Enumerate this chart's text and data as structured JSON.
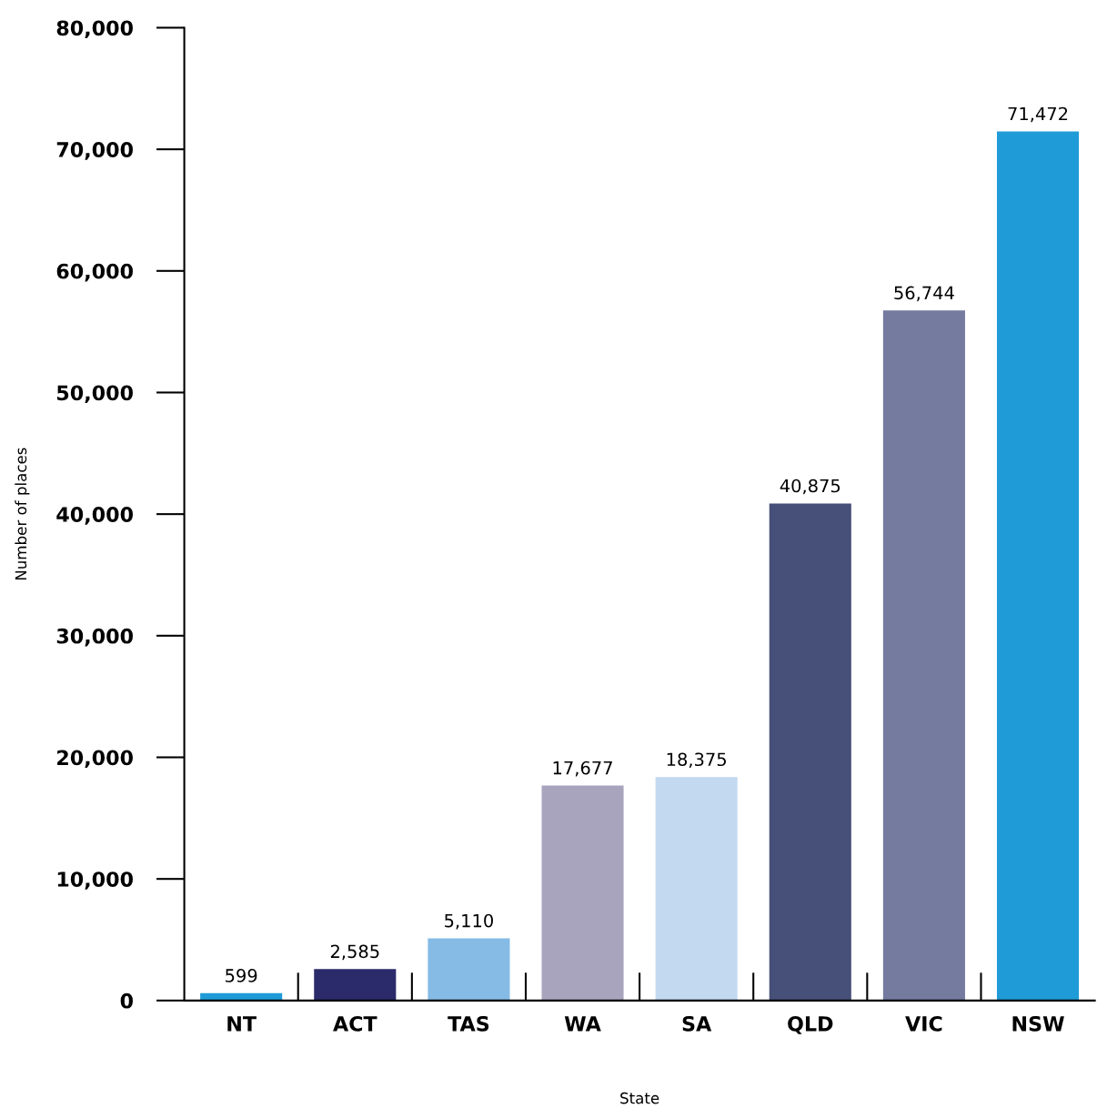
{
  "chart_data": {
    "type": "bar",
    "xlabel": "State",
    "ylabel": "Number of places",
    "categories": [
      "NT",
      "ACT",
      "TAS",
      "WA",
      "SA",
      "QLD",
      "VIC",
      "NSW"
    ],
    "values": [
      599,
      2585,
      5110,
      17677,
      18375,
      40875,
      56744,
      71472
    ],
    "colors": [
      "#1f9bd7",
      "#2b2a6b",
      "#85bbe5",
      "#a9a4bd",
      "#c2d9f0",
      "#465078",
      "#757a9f",
      "#1f9bd7"
    ],
    "value_labels": [
      "599",
      "2,585",
      "5,110",
      "17,677",
      "18,375",
      "40,875",
      "56,744",
      "71,472"
    ],
    "ylim": [
      0,
      80000
    ],
    "yticks": [
      0,
      {
        "value": 10000,
        "label": "10,000"
      },
      {
        "value": 20000,
        "label": "20,000"
      },
      {
        "value": 30000,
        "label": "30,000"
      },
      {
        "value": 40000,
        "label": "40,000"
      },
      {
        "value": 50000,
        "label": "50,000"
      },
      {
        "value": 60000,
        "label": "60,000"
      },
      {
        "value": 70000,
        "label": "70,000"
      },
      {
        "value": 80000,
        "label": "80,000"
      }
    ],
    "grid": false,
    "legend": false
  }
}
